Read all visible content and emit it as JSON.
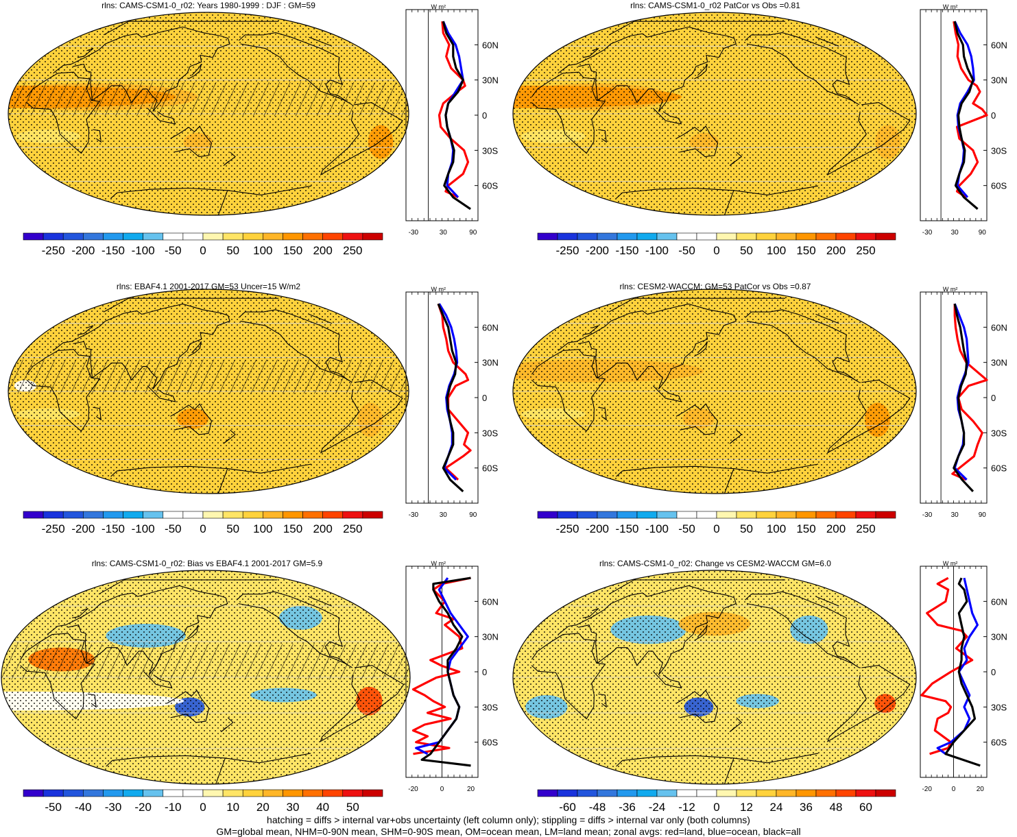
{
  "colors": {
    "land": "#ff0000",
    "ocean": "#0000ff",
    "all": "#000000",
    "absolute_scale": [
      "#3300cc",
      "#1a33dd",
      "#2255dd",
      "#3377dd",
      "#2299ee",
      "#11aaee",
      "#66c2ee",
      "#ffffff",
      "#ffffff",
      "#fff7b0",
      "#ffe566",
      "#ffd23c",
      "#ffb628",
      "#ff9600",
      "#ff7000",
      "#ff4400",
      "#ee1111",
      "#cc0000"
    ],
    "diff_scale": [
      "#3300cc",
      "#1a33dd",
      "#2255dd",
      "#3377dd",
      "#2299ee",
      "#11aaee",
      "#66c2ee",
      "#ffffff",
      "#ffffff",
      "#fff7b0",
      "#ffe566",
      "#ffd23c",
      "#ffb628",
      "#ff9600",
      "#ff7000",
      "#ff4400",
      "#ee1111",
      "#cc0000"
    ]
  },
  "chart_data": [
    {
      "type": "heatmap",
      "title": "rlns: CAMS-CSM1-0_r02: Years 1980-1999 : DJF : GM=59",
      "colorbar_ticks": [
        "-250",
        "-200",
        "-150",
        "-100",
        "-50",
        "0",
        "50",
        "100",
        "150",
        "200",
        "250"
      ],
      "zonal_profile": {
        "unit": "W m²",
        "x_ticks": [
          "-30",
          "30",
          "90"
        ],
        "xlim": [
          -45,
          100
        ],
        "y_ticks": [
          "60N",
          "30N",
          "0",
          "30S",
          "60S"
        ],
        "series": [
          {
            "name": "red=land",
            "lat": [
              80,
              70,
              60,
              50,
              40,
              30,
              25,
              20,
              10,
              0,
              -10,
              -20,
              -30,
              -40,
              -50,
              -60,
              -65,
              -70
            ],
            "values": [
              28,
              30,
              42,
              36,
              46,
              70,
              74,
              58,
              30,
              22,
              25,
              45,
              72,
              80,
              70,
              40,
              35,
              60
            ]
          },
          {
            "name": "blue=ocean",
            "lat": [
              80,
              70,
              60,
              50,
              40,
              30,
              20,
              10,
              0,
              -10,
              -20,
              -30,
              -40,
              -50,
              -60,
              -70
            ],
            "values": [
              30,
              40,
              55,
              62,
              66,
              70,
              55,
              40,
              35,
              38,
              45,
              50,
              48,
              40,
              38,
              60
            ]
          },
          {
            "name": "black=all",
            "lat": [
              80,
              70,
              60,
              50,
              40,
              30,
              20,
              10,
              0,
              -10,
              -20,
              -30,
              -40,
              -50,
              -60,
              -70,
              -80
            ],
            "values": [
              30,
              36,
              50,
              50,
              56,
              70,
              60,
              40,
              35,
              38,
              45,
              52,
              50,
              40,
              32,
              50,
              85
            ]
          }
        ]
      }
    },
    {
      "type": "heatmap",
      "title": "rlns: CAMS-CSM1-0_r02 PatCor vs Obs =0.81",
      "colorbar_ticks": [
        "-250",
        "-200",
        "-150",
        "-100",
        "-50",
        "0",
        "50",
        "100",
        "150",
        "200",
        "250"
      ],
      "zonal_profile": {
        "unit": "W m²",
        "x_ticks": [
          "-30",
          "30",
          "90"
        ],
        "xlim": [
          -45,
          100
        ],
        "y_ticks": [
          "60N",
          "30N",
          "0",
          "30S",
          "60S"
        ],
        "series": [
          {
            "name": "red=land",
            "lat": [
              80,
              70,
              60,
              50,
              40,
              30,
              25,
              20,
              10,
              5,
              0,
              -10,
              -20,
              -30,
              -40,
              -50,
              -60,
              -65,
              -70
            ],
            "values": [
              28,
              32,
              38,
              36,
              44,
              60,
              78,
              85,
              70,
              90,
              100,
              35,
              40,
              70,
              80,
              65,
              40,
              35,
              55
            ]
          },
          {
            "name": "blue=ocean",
            "lat": [
              80,
              70,
              60,
              50,
              40,
              30,
              20,
              10,
              0,
              -10,
              -20,
              -30,
              -40,
              -50,
              -60,
              -70
            ],
            "values": [
              30,
              42,
              58,
              66,
              70,
              72,
              58,
              42,
              36,
              38,
              45,
              50,
              48,
              40,
              36,
              58
            ]
          },
          {
            "name": "black=all",
            "lat": [
              80,
              70,
              60,
              50,
              40,
              30,
              20,
              10,
              0,
              -10,
              -20,
              -30,
              -40,
              -50,
              -60,
              -70,
              -80
            ],
            "values": [
              30,
              36,
              48,
              50,
              58,
              70,
              62,
              45,
              38,
              40,
              45,
              52,
              50,
              40,
              32,
              50,
              80
            ]
          }
        ]
      }
    },
    {
      "type": "heatmap",
      "title": "rlns: EBAF4.1 2001-2017 GM=53 Uncer=15 W/m2",
      "colorbar_ticks": [
        "-250",
        "-200",
        "-150",
        "-100",
        "-50",
        "0",
        "50",
        "100",
        "150",
        "200",
        "250"
      ],
      "zonal_profile": {
        "unit": "W m²",
        "x_ticks": [
          "-30",
          "30",
          "90"
        ],
        "xlim": [
          -45,
          100
        ],
        "y_ticks": [
          "60N",
          "30N",
          "0",
          "30S",
          "60S"
        ],
        "series": [
          {
            "name": "red=land",
            "lat": [
              80,
              70,
              60,
              50,
              40,
              30,
              20,
              15,
              10,
              0,
              -10,
              -20,
              -30,
              -40,
              -45,
              -50,
              -60,
              -70
            ],
            "values": [
              20,
              28,
              30,
              36,
              40,
              50,
              75,
              80,
              55,
              40,
              40,
              60,
              80,
              72,
              85,
              70,
              35,
              60
            ]
          },
          {
            "name": "blue=ocean",
            "lat": [
              80,
              70,
              60,
              50,
              40,
              30,
              20,
              10,
              0,
              -10,
              -20,
              -30,
              -40,
              -50,
              -60,
              -70
            ],
            "values": [
              22,
              36,
              46,
              52,
              56,
              58,
              52,
              42,
              36,
              38,
              44,
              48,
              48,
              40,
              32,
              56
            ]
          },
          {
            "name": "black=all",
            "lat": [
              80,
              70,
              60,
              50,
              40,
              30,
              20,
              10,
              0,
              -10,
              -20,
              -30,
              -40,
              -50,
              -60,
              -70,
              -80
            ],
            "values": [
              20,
              30,
              40,
              44,
              48,
              56,
              54,
              44,
              38,
              40,
              44,
              50,
              50,
              40,
              30,
              44,
              70
            ]
          }
        ]
      }
    },
    {
      "type": "heatmap",
      "title": "rlns: CESM2-WACCM: GM=53 PatCor vs Obs =0.87",
      "colorbar_ticks": [
        "-250",
        "-200",
        "-150",
        "-100",
        "-50",
        "0",
        "50",
        "100",
        "150",
        "200",
        "250"
      ],
      "zonal_profile": {
        "unit": "W m²",
        "x_ticks": [
          "-30",
          "30",
          "90"
        ],
        "xlim": [
          -45,
          100
        ],
        "y_ticks": [
          "60N",
          "30N",
          "0",
          "30S",
          "60S"
        ],
        "series": [
          {
            "name": "red=land",
            "lat": [
              80,
              70,
              60,
              50,
              40,
              30,
              20,
              15,
              10,
              0,
              -10,
              -20,
              -30,
              -40,
              -50,
              -60,
              -65,
              -70
            ],
            "values": [
              30,
              30,
              32,
              36,
              42,
              55,
              85,
              100,
              60,
              38,
              45,
              70,
              90,
              80,
              72,
              40,
              25,
              55
            ]
          },
          {
            "name": "blue=ocean",
            "lat": [
              80,
              70,
              60,
              50,
              40,
              30,
              20,
              10,
              0,
              -10,
              -20,
              -30,
              -40,
              -50,
              -60,
              -70
            ],
            "values": [
              30,
              40,
              50,
              56,
              58,
              60,
              52,
              42,
              36,
              38,
              45,
              50,
              48,
              38,
              30,
              56
            ]
          },
          {
            "name": "black=all",
            "lat": [
              80,
              70,
              60,
              50,
              40,
              30,
              20,
              10,
              0,
              -10,
              -20,
              -30,
              -40,
              -50,
              -60,
              -70,
              -80
            ],
            "values": [
              30,
              35,
              42,
              46,
              50,
              56,
              54,
              44,
              38,
              40,
              45,
              50,
              50,
              38,
              28,
              46,
              70
            ]
          }
        ]
      }
    },
    {
      "type": "heatmap",
      "title": "rlns: CAMS-CSM1-0_r02: Bias vs EBAF4.1 2001-2017 GM=5.9",
      "colorbar_ticks": [
        "-50",
        "-40",
        "-30",
        "-20",
        "-10",
        "0",
        "10",
        "20",
        "30",
        "40",
        "50"
      ],
      "zonal_profile": {
        "unit": "W m²",
        "x_ticks": [
          "-20",
          "0",
          "20"
        ],
        "xlim": [
          -25,
          25
        ],
        "y_ticks": [
          "60N",
          "30N",
          "0",
          "30S",
          "60S"
        ],
        "series": [
          {
            "name": "red=land",
            "lat": [
              80,
              75,
              70,
              60,
              50,
              45,
              40,
              30,
              20,
              10,
              5,
              0,
              -5,
              -10,
              -15,
              -20,
              -25,
              -30,
              -35,
              -40,
              -45,
              -50,
              -55,
              -60,
              -65,
              -70
            ],
            "values": [
              20,
              0,
              -6,
              2,
              -4,
              8,
              2,
              12,
              14,
              -8,
              0,
              12,
              -4,
              -12,
              -20,
              -12,
              -6,
              2,
              -10,
              6,
              -12,
              -20,
              -10,
              -18,
              5,
              -20
            ]
          },
          {
            "name": "blue=ocean",
            "lat": [
              80,
              70,
              60,
              50,
              40,
              30,
              20,
              10,
              0,
              -10,
              -20,
              -30,
              -40,
              -50,
              -60,
              -65,
              -70
            ],
            "values": [
              4,
              -2,
              2,
              6,
              12,
              18,
              12,
              6,
              4,
              6,
              8,
              12,
              10,
              4,
              -2,
              -18,
              -10
            ]
          },
          {
            "name": "black=all",
            "lat": [
              80,
              75,
              70,
              60,
              50,
              40,
              30,
              20,
              10,
              0,
              -10,
              -20,
              -30,
              -40,
              -50,
              -60,
              -70,
              -75,
              -80
            ],
            "values": [
              20,
              -6,
              -6,
              -2,
              4,
              8,
              14,
              10,
              4,
              4,
              6,
              8,
              12,
              10,
              4,
              -2,
              -8,
              -14,
              20
            ]
          }
        ]
      }
    },
    {
      "type": "heatmap",
      "title": "rlns: CAMS-CSM1-0_r02: Change vs CESM2-WACCM GM=6.0",
      "colorbar_ticks": [
        "-60",
        "-48",
        "-36",
        "-24",
        "-12",
        "0",
        "12",
        "24",
        "36",
        "48",
        "60"
      ],
      "zonal_profile": {
        "unit": "W m²",
        "x_ticks": [
          "-20",
          "0",
          "20"
        ],
        "xlim": [
          -25,
          25
        ],
        "y_ticks": [
          "60N",
          "30N",
          "0",
          "30S",
          "60S"
        ],
        "series": [
          {
            "name": "red=land",
            "lat": [
              80,
              75,
              70,
              60,
              50,
              40,
              35,
              30,
              20,
              10,
              0,
              -10,
              -20,
              -25,
              -30,
              -35,
              -40,
              -50,
              -60,
              -65,
              -70
            ],
            "values": [
              -4,
              -12,
              -4,
              -6,
              -20,
              -12,
              6,
              10,
              2,
              14,
              -2,
              -16,
              -24,
              -6,
              -2,
              -4,
              -12,
              -14,
              -2,
              -4,
              -18
            ]
          },
          {
            "name": "blue=ocean",
            "lat": [
              80,
              70,
              60,
              50,
              40,
              30,
              20,
              10,
              0,
              -10,
              -20,
              -30,
              -40,
              -50,
              -60,
              -65,
              -70
            ],
            "values": [
              8,
              10,
              12,
              14,
              18,
              12,
              8,
              10,
              4,
              8,
              12,
              8,
              12,
              8,
              -2,
              -12,
              -6
            ]
          },
          {
            "name": "black=all",
            "lat": [
              80,
              75,
              70,
              60,
              50,
              40,
              30,
              20,
              10,
              0,
              -10,
              -20,
              -30,
              -40,
              -50,
              -60,
              -70,
              -80
            ],
            "values": [
              6,
              4,
              8,
              10,
              4,
              6,
              8,
              6,
              6,
              4,
              6,
              10,
              14,
              16,
              8,
              0,
              -6,
              20
            ]
          }
        ]
      }
    }
  ],
  "footer": {
    "line1": "hatching = diffs > internal var+obs uncertainty (left column only); stippling = diffs > internal var only (both columns)",
    "line2": "GM=global mean, NHM=0-90N mean, SHM=0-90S mean, OM=ocean mean, LM=land mean; zonal avgs: red=land, blue=ocean, black=all"
  }
}
